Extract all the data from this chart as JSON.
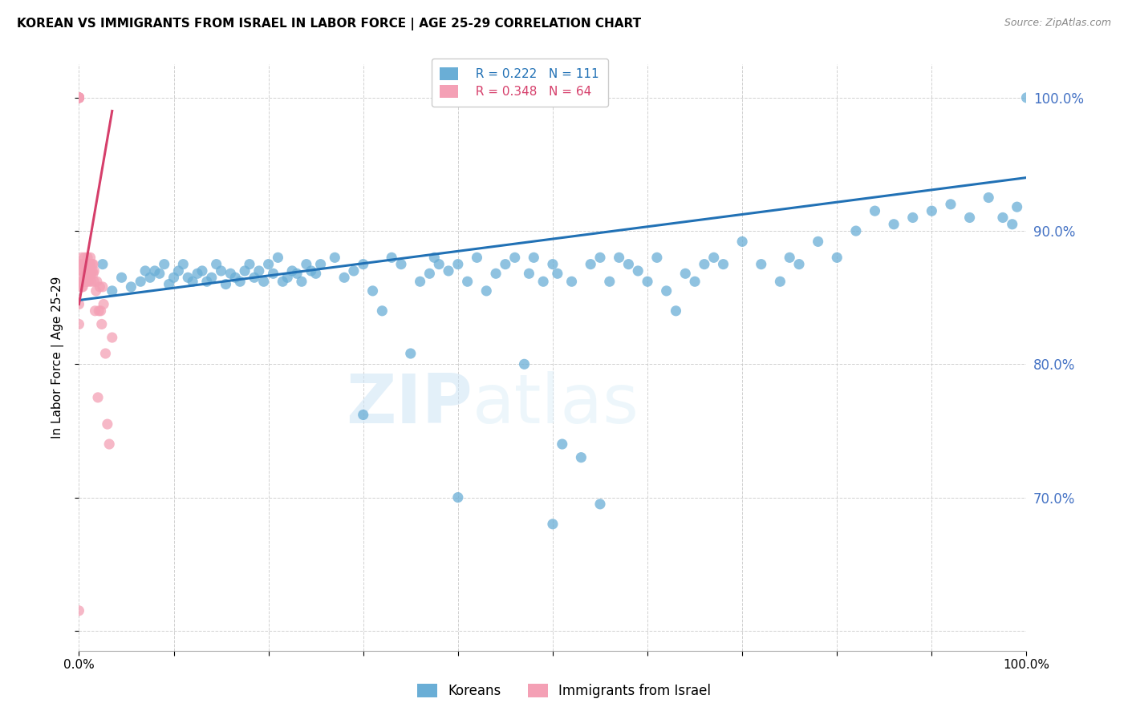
{
  "title": "KOREAN VS IMMIGRANTS FROM ISRAEL IN LABOR FORCE | AGE 25-29 CORRELATION CHART",
  "source": "Source: ZipAtlas.com",
  "ylabel": "In Labor Force | Age 25-29",
  "legend_blue_R": "R = 0.222",
  "legend_blue_N": "N = 111",
  "legend_pink_R": "R = 0.348",
  "legend_pink_N": "N = 64",
  "legend_label_blue": "Koreans",
  "legend_label_pink": "Immigrants from Israel",
  "blue_color": "#6aaed6",
  "pink_color": "#f4a0b5",
  "blue_line_color": "#2171b5",
  "pink_line_color": "#d63f6b",
  "grid_color": "#cccccc",
  "watermark_text": "ZIPatlas",
  "title_fontsize": 11,
  "axis_label_fontsize": 11,
  "tick_fontsize": 11,
  "source_fontsize": 9,
  "xlim": [
    0.0,
    1.0
  ],
  "ylim": [
    0.585,
    1.025
  ],
  "blue_scatter_x": [
    0.025,
    0.035,
    0.045,
    0.055,
    0.065,
    0.07,
    0.075,
    0.08,
    0.085,
    0.09,
    0.095,
    0.1,
    0.105,
    0.11,
    0.115,
    0.12,
    0.125,
    0.13,
    0.135,
    0.14,
    0.145,
    0.15,
    0.155,
    0.16,
    0.165,
    0.17,
    0.175,
    0.18,
    0.185,
    0.19,
    0.195,
    0.2,
    0.205,
    0.21,
    0.215,
    0.22,
    0.225,
    0.23,
    0.235,
    0.24,
    0.245,
    0.25,
    0.255,
    0.27,
    0.28,
    0.29,
    0.3,
    0.31,
    0.32,
    0.33,
    0.34,
    0.35,
    0.36,
    0.37,
    0.375,
    0.38,
    0.39,
    0.4,
    0.41,
    0.42,
    0.43,
    0.44,
    0.45,
    0.46,
    0.47,
    0.475,
    0.48,
    0.49,
    0.5,
    0.505,
    0.51,
    0.52,
    0.53,
    0.54,
    0.55,
    0.56,
    0.57,
    0.58,
    0.59,
    0.6,
    0.61,
    0.62,
    0.63,
    0.64,
    0.65,
    0.66,
    0.67,
    0.68,
    0.7,
    0.72,
    0.74,
    0.75,
    0.76,
    0.78,
    0.8,
    0.82,
    0.84,
    0.86,
    0.88,
    0.9,
    0.92,
    0.94,
    0.96,
    0.975,
    0.985,
    0.99,
    1.0,
    0.5,
    0.3,
    0.4,
    0.55
  ],
  "blue_scatter_y": [
    0.875,
    0.855,
    0.865,
    0.858,
    0.862,
    0.87,
    0.865,
    0.87,
    0.868,
    0.875,
    0.86,
    0.865,
    0.87,
    0.875,
    0.865,
    0.862,
    0.868,
    0.87,
    0.862,
    0.865,
    0.875,
    0.87,
    0.86,
    0.868,
    0.865,
    0.862,
    0.87,
    0.875,
    0.865,
    0.87,
    0.862,
    0.875,
    0.868,
    0.88,
    0.862,
    0.865,
    0.87,
    0.868,
    0.862,
    0.875,
    0.87,
    0.868,
    0.875,
    0.88,
    0.865,
    0.87,
    0.875,
    0.855,
    0.84,
    0.88,
    0.875,
    0.808,
    0.862,
    0.868,
    0.88,
    0.875,
    0.87,
    0.875,
    0.862,
    0.88,
    0.855,
    0.868,
    0.875,
    0.88,
    0.8,
    0.868,
    0.88,
    0.862,
    0.875,
    0.868,
    0.74,
    0.862,
    0.73,
    0.875,
    0.88,
    0.862,
    0.88,
    0.875,
    0.87,
    0.862,
    0.88,
    0.855,
    0.84,
    0.868,
    0.862,
    0.875,
    0.88,
    0.875,
    0.892,
    0.875,
    0.862,
    0.88,
    0.875,
    0.892,
    0.88,
    0.9,
    0.915,
    0.905,
    0.91,
    0.915,
    0.92,
    0.91,
    0.925,
    0.91,
    0.905,
    0.918,
    1.0,
    0.68,
    0.762,
    0.7,
    0.695
  ],
  "pink_scatter_x": [
    0.0,
    0.0,
    0.0,
    0.0,
    0.0,
    0.0,
    0.0,
    0.0,
    0.0,
    0.0,
    0.0,
    0.0,
    0.0,
    0.0,
    0.0,
    0.002,
    0.002,
    0.003,
    0.003,
    0.003,
    0.004,
    0.004,
    0.004,
    0.005,
    0.005,
    0.005,
    0.006,
    0.006,
    0.007,
    0.007,
    0.008,
    0.008,
    0.008,
    0.009,
    0.009,
    0.01,
    0.01,
    0.01,
    0.011,
    0.011,
    0.012,
    0.012,
    0.013,
    0.013,
    0.014,
    0.014,
    0.015,
    0.015,
    0.016,
    0.016,
    0.017,
    0.018,
    0.019,
    0.02,
    0.021,
    0.022,
    0.023,
    0.024,
    0.025,
    0.026,
    0.028,
    0.03,
    0.032,
    0.035
  ],
  "pink_scatter_y": [
    1.0,
    1.0,
    1.0,
    1.0,
    1.0,
    1.0,
    1.0,
    1.0,
    1.0,
    1.0,
    0.875,
    0.86,
    0.845,
    0.83,
    0.615,
    0.875,
    0.862,
    0.87,
    0.858,
    0.88,
    0.875,
    0.865,
    0.858,
    0.87,
    0.862,
    0.875,
    0.868,
    0.88,
    0.875,
    0.862,
    0.87,
    0.875,
    0.862,
    0.868,
    0.88,
    0.875,
    0.862,
    0.87,
    0.875,
    0.868,
    0.88,
    0.875,
    0.868,
    0.862,
    0.875,
    0.87,
    0.868,
    0.875,
    0.87,
    0.862,
    0.84,
    0.855,
    0.862,
    0.775,
    0.84,
    0.858,
    0.84,
    0.83,
    0.858,
    0.845,
    0.808,
    0.755,
    0.74,
    0.82
  ],
  "blue_trendline_x": [
    0.0,
    1.0
  ],
  "blue_trendline_y": [
    0.848,
    0.94
  ],
  "pink_trendline_x": [
    0.0,
    0.035
  ],
  "pink_trendline_y": [
    0.845,
    0.99
  ]
}
